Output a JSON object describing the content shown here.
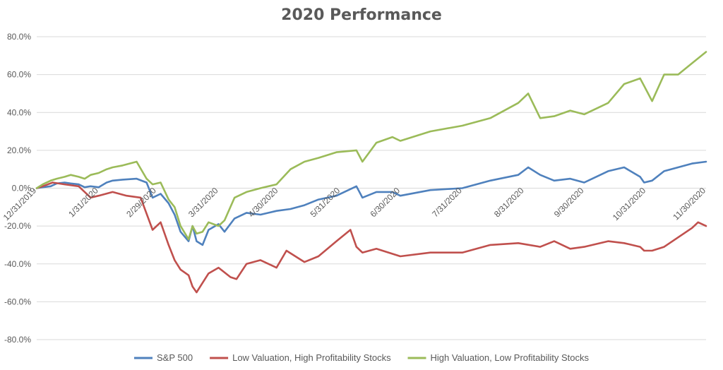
{
  "chart_data": {
    "type": "line",
    "title": "2020 Performance",
    "xlabel": "",
    "ylabel": "",
    "ylim": [
      -80,
      80
    ],
    "xlim": [
      "2019-12-31",
      "2020-11-30"
    ],
    "y_tick_values": [
      -80,
      -60,
      -40,
      -20,
      0,
      20,
      40,
      60,
      80
    ],
    "y_tick_labels": [
      "-80.0%",
      "-60.0%",
      "-40.0%",
      "-20.0%",
      "0.0%",
      "20.0%",
      "40.0%",
      "60.0%",
      "80.0%"
    ],
    "x_tick_values": [
      "2019-12-31",
      "2020-01-31",
      "2020-02-29",
      "2020-03-31",
      "2020-04-30",
      "2020-05-31",
      "2020-06-30",
      "2020-07-31",
      "2020-08-31",
      "2020-09-30",
      "2020-10-31",
      "2020-11-30"
    ],
    "x_tick_labels": [
      "12/31/2019",
      "1/31/2020",
      "2/29/2020",
      "3/31/2020",
      "4/30/2020",
      "5/31/2020",
      "6/30/2020",
      "7/31/2020",
      "8/31/2020",
      "9/30/2020",
      "10/31/2020",
      "11/30/2020"
    ],
    "grid": true,
    "legend_position": "bottom",
    "series": [
      {
        "name": "S&P 500",
        "color": "#4f81bd",
        "x": [
          "2019-12-31",
          "2020-01-03",
          "2020-01-07",
          "2020-01-10",
          "2020-01-14",
          "2020-01-17",
          "2020-01-21",
          "2020-01-24",
          "2020-01-27",
          "2020-01-31",
          "2020-02-04",
          "2020-02-07",
          "2020-02-12",
          "2020-02-19",
          "2020-02-24",
          "2020-02-27",
          "2020-03-02",
          "2020-03-06",
          "2020-03-09",
          "2020-03-12",
          "2020-03-16",
          "2020-03-18",
          "2020-03-20",
          "2020-03-23",
          "2020-03-26",
          "2020-03-31",
          "2020-04-03",
          "2020-04-08",
          "2020-04-14",
          "2020-04-21",
          "2020-04-29",
          "2020-05-06",
          "2020-05-13",
          "2020-05-20",
          "2020-05-29",
          "2020-06-08",
          "2020-06-11",
          "2020-06-18",
          "2020-06-26",
          "2020-06-30",
          "2020-07-15",
          "2020-07-31",
          "2020-08-14",
          "2020-08-28",
          "2020-09-02",
          "2020-09-08",
          "2020-09-15",
          "2020-09-23",
          "2020-09-30",
          "2020-10-12",
          "2020-10-20",
          "2020-10-28",
          "2020-10-30",
          "2020-11-03",
          "2020-11-09",
          "2020-11-16",
          "2020-11-23",
          "2020-11-30"
        ],
        "values": [
          0,
          0.5,
          1,
          2.5,
          3,
          2.5,
          2,
          0.5,
          1,
          0.5,
          3,
          4,
          4.5,
          5,
          3,
          -5,
          -3,
          -8,
          -14,
          -23,
          -28,
          -20,
          -28,
          -30,
          -22,
          -19,
          -23,
          -16,
          -13,
          -14,
          -12,
          -11,
          -9,
          -6,
          -4,
          1,
          -5,
          -2,
          -2,
          -4,
          -1,
          0,
          4,
          7,
          11,
          7,
          4,
          5,
          3,
          9,
          11,
          6,
          3,
          4,
          9,
          11,
          13,
          14
        ]
      },
      {
        "name": "Low Valuation, High Profitability Stocks",
        "color": "#c0504d",
        "x": [
          "2019-12-31",
          "2020-01-03",
          "2020-01-08",
          "2020-01-14",
          "2020-01-21",
          "2020-01-27",
          "2020-01-31",
          "2020-02-07",
          "2020-02-14",
          "2020-02-21",
          "2020-02-27",
          "2020-03-02",
          "2020-03-06",
          "2020-03-09",
          "2020-03-12",
          "2020-03-16",
          "2020-03-18",
          "2020-03-20",
          "2020-03-23",
          "2020-03-26",
          "2020-03-31",
          "2020-04-06",
          "2020-04-09",
          "2020-04-14",
          "2020-04-21",
          "2020-04-29",
          "2020-05-04",
          "2020-05-13",
          "2020-05-20",
          "2020-05-29",
          "2020-06-05",
          "2020-06-08",
          "2020-06-11",
          "2020-06-18",
          "2020-06-30",
          "2020-07-15",
          "2020-07-31",
          "2020-08-14",
          "2020-08-28",
          "2020-09-08",
          "2020-09-15",
          "2020-09-23",
          "2020-09-30",
          "2020-10-12",
          "2020-10-20",
          "2020-10-28",
          "2020-10-30",
          "2020-11-03",
          "2020-11-09",
          "2020-11-16",
          "2020-11-23",
          "2020-11-26",
          "2020-11-30"
        ],
        "values": [
          0,
          1,
          3,
          2,
          1,
          -5,
          -4,
          -2,
          -4,
          -5,
          -22,
          -18,
          -30,
          -38,
          -43,
          -46,
          -52,
          -55,
          -50,
          -45,
          -42,
          -47,
          -48,
          -40,
          -38,
          -42,
          -33,
          -39,
          -36,
          -28,
          -22,
          -31,
          -34,
          -32,
          -36,
          -34,
          -34,
          -30,
          -29,
          -31,
          -28,
          -32,
          -31,
          -28,
          -29,
          -31,
          -33,
          -33,
          -31,
          -26,
          -21,
          -18,
          -20
        ]
      },
      {
        "name": "High Valuation, Low Profitability Stocks",
        "color": "#9bbb59",
        "x": [
          "2019-12-31",
          "2020-01-03",
          "2020-01-07",
          "2020-01-10",
          "2020-01-14",
          "2020-01-17",
          "2020-01-21",
          "2020-01-24",
          "2020-01-27",
          "2020-01-31",
          "2020-02-04",
          "2020-02-07",
          "2020-02-12",
          "2020-02-19",
          "2020-02-24",
          "2020-02-27",
          "2020-03-02",
          "2020-03-06",
          "2020-03-09",
          "2020-03-12",
          "2020-03-16",
          "2020-03-18",
          "2020-03-20",
          "2020-03-23",
          "2020-03-26",
          "2020-03-31",
          "2020-04-03",
          "2020-04-08",
          "2020-04-14",
          "2020-04-21",
          "2020-04-29",
          "2020-05-06",
          "2020-05-13",
          "2020-05-20",
          "2020-05-29",
          "2020-06-08",
          "2020-06-11",
          "2020-06-18",
          "2020-06-26",
          "2020-06-30",
          "2020-07-15",
          "2020-07-31",
          "2020-08-14",
          "2020-08-28",
          "2020-09-02",
          "2020-09-08",
          "2020-09-15",
          "2020-09-23",
          "2020-09-30",
          "2020-10-12",
          "2020-10-20",
          "2020-10-28",
          "2020-10-30",
          "2020-11-03",
          "2020-11-09",
          "2020-11-16",
          "2020-11-23",
          "2020-11-30"
        ],
        "values": [
          0,
          2,
          4,
          5,
          6,
          7,
          6,
          5,
          7,
          8,
          10,
          11,
          12,
          14,
          5,
          2,
          3,
          -6,
          -10,
          -20,
          -27,
          -20,
          -24,
          -23,
          -18,
          -20,
          -17,
          -5,
          -2,
          0,
          2,
          10,
          14,
          16,
          19,
          20,
          14,
          24,
          27,
          25,
          30,
          33,
          37,
          45,
          50,
          37,
          38,
          41,
          39,
          45,
          55,
          58,
          54,
          46,
          60,
          60,
          66,
          72
        ]
      }
    ]
  }
}
